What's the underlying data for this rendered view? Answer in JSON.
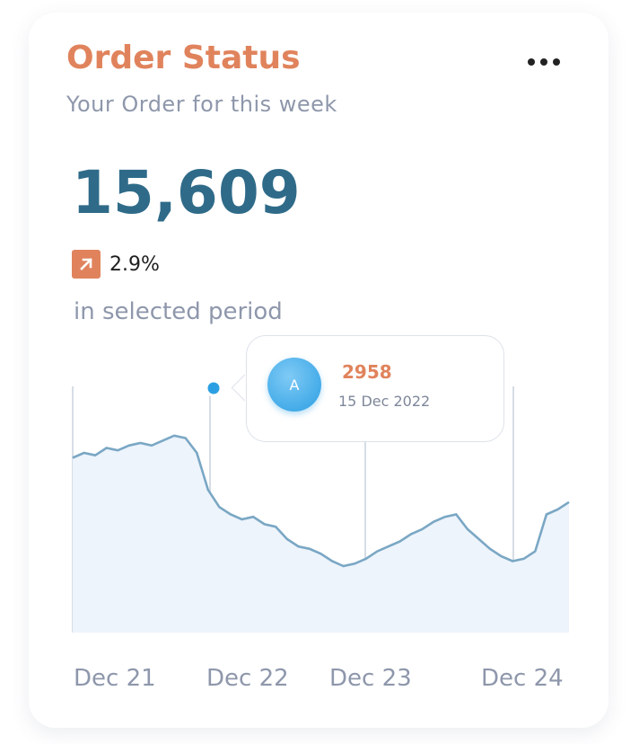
{
  "card": {
    "title": "Order Status",
    "subtitle": "Your Order for this week",
    "menu_icon": "more-horizontal-icon"
  },
  "summary": {
    "total": "15,609",
    "change_icon": "arrow-up-right-icon",
    "change": "2.9%",
    "period_note": "in selected period"
  },
  "tooltip": {
    "avatar_letter": "A",
    "value": "2958",
    "date": "15 Dec 2022"
  },
  "colors": {
    "accent": "#e0835c",
    "headline": "#2f6b89",
    "line": "#7aa7c4",
    "area": "#edf4fc",
    "marker": "#2c9fe3"
  },
  "chart_data": {
    "type": "area",
    "x_tick_labels": [
      "Dec 21",
      "Dec 22",
      "Dec 23",
      "Dec 24"
    ],
    "grid": "vertical lines at date ticks",
    "highlight": {
      "label": "15 Dec 2022",
      "value": 2958
    },
    "series": [
      {
        "values": [
          0.71,
          0.73,
          0.72,
          0.75,
          0.74,
          0.76,
          0.77,
          0.76,
          0.78,
          0.8,
          0.79,
          0.73,
          0.58,
          0.51,
          0.48,
          0.46,
          0.47,
          0.44,
          0.43,
          0.38,
          0.35,
          0.34,
          0.32,
          0.29,
          0.27,
          0.28,
          0.3,
          0.33,
          0.35,
          0.37,
          0.4,
          0.42,
          0.45,
          0.47,
          0.48,
          0.42,
          0.38,
          0.34,
          0.31,
          0.29,
          0.3,
          0.33,
          0.48,
          0.5,
          0.53
        ]
      }
    ]
  }
}
